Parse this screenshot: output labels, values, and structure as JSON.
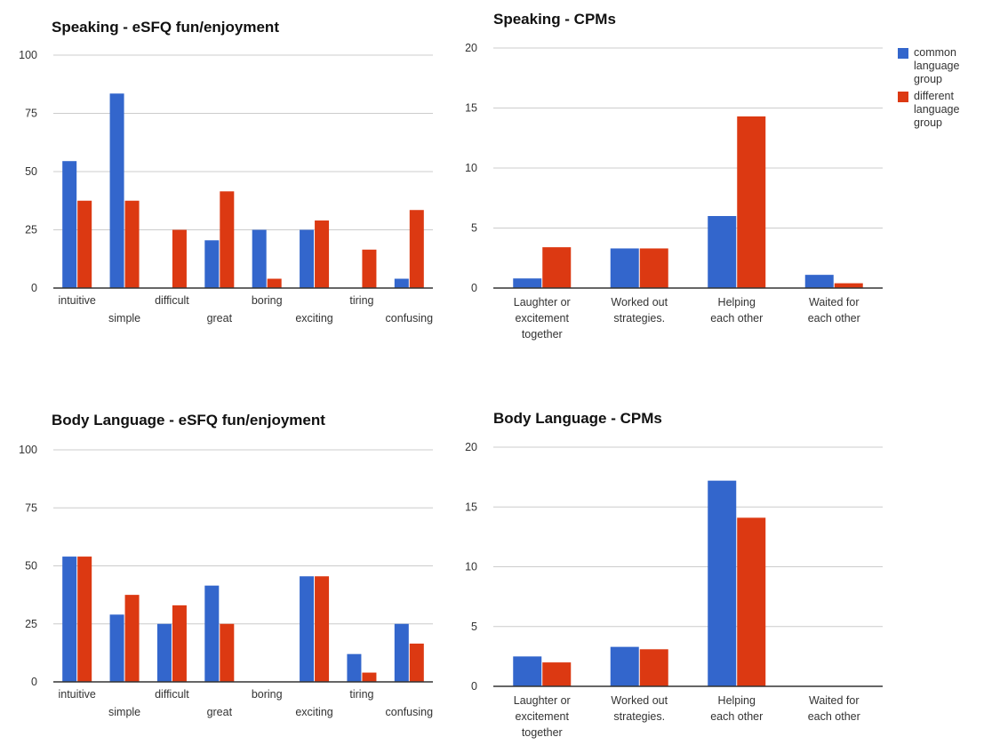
{
  "colors": {
    "common": "#3366cc",
    "different": "#dc3912"
  },
  "legend": {
    "common_label": "common language group",
    "different_label": "different language group"
  },
  "chart_data": [
    {
      "id": "speaking-esfq",
      "type": "bar",
      "title": "Speaking - eSFQ fun/enjoyment",
      "categories": [
        "intuitive",
        "simple",
        "difficult",
        "great",
        "boring",
        "exciting",
        "tiring",
        "confusing"
      ],
      "ylim": [
        0,
        100
      ],
      "yticks": [
        0,
        25,
        50,
        75,
        100
      ],
      "grid": true,
      "series": [
        {
          "name": "common language group",
          "values": [
            54.5,
            83.5,
            0,
            20.5,
            25,
            25,
            0,
            4
          ]
        },
        {
          "name": "different language group",
          "values": [
            37.5,
            37.5,
            25,
            41.5,
            4,
            29,
            16.5,
            33.5
          ]
        }
      ]
    },
    {
      "id": "speaking-cpms",
      "type": "bar",
      "title": "Speaking - CPMs",
      "categories": [
        "Laughter or excitement together",
        "Worked out strategies.",
        "Helping each other",
        "Waited for each other"
      ],
      "ylim": [
        0,
        20
      ],
      "yticks": [
        0,
        5,
        10,
        15,
        20
      ],
      "grid": true,
      "legend_position": "right",
      "series": [
        {
          "name": "common language group",
          "values": [
            0.8,
            3.3,
            6,
            1.1
          ]
        },
        {
          "name": "different language group",
          "values": [
            3.4,
            3.3,
            14.3,
            0.4
          ]
        }
      ]
    },
    {
      "id": "body-esfq",
      "type": "bar",
      "title": "Body Language - eSFQ fun/enjoyment",
      "categories": [
        "intuitive",
        "simple",
        "difficult",
        "great",
        "boring",
        "exciting",
        "tiring",
        "confusing"
      ],
      "ylim": [
        0,
        100
      ],
      "yticks": [
        0,
        25,
        50,
        75,
        100
      ],
      "grid": true,
      "series": [
        {
          "name": "common language group",
          "values": [
            54,
            29,
            25,
            41.5,
            0,
            45.5,
            12,
            25
          ]
        },
        {
          "name": "different language group",
          "values": [
            54,
            37.5,
            33,
            25,
            0,
            45.5,
            4,
            16.5
          ]
        }
      ]
    },
    {
      "id": "body-cpms",
      "type": "bar",
      "title": "Body Language - CPMs",
      "categories": [
        "Laughter or excitement together",
        "Worked out strategies.",
        "Helping each other",
        "Waited for each other"
      ],
      "ylim": [
        0,
        20
      ],
      "yticks": [
        0,
        5,
        10,
        15,
        20
      ],
      "grid": true,
      "series": [
        {
          "name": "common language group",
          "values": [
            2.5,
            3.3,
            17.2,
            0
          ]
        },
        {
          "name": "different language group",
          "values": [
            2,
            3.1,
            14.1,
            0
          ]
        }
      ]
    }
  ]
}
